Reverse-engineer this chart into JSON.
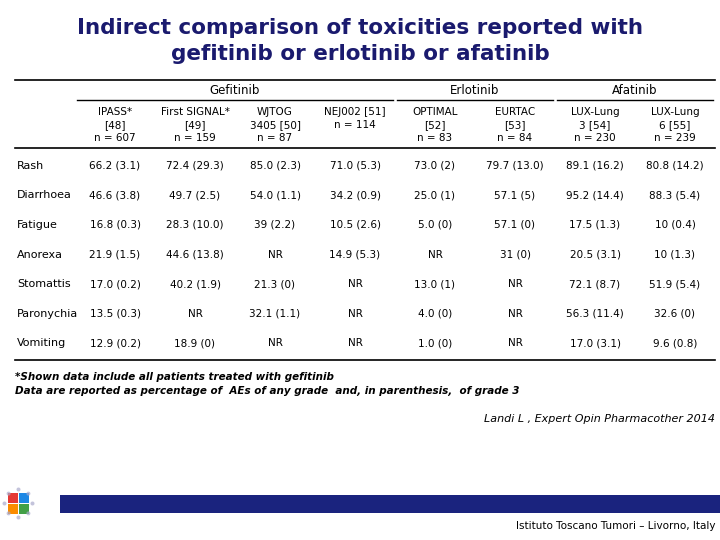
{
  "title_line1": "Indirect comparison of toxicities reported with",
  "title_line2": "gefitinib or erlotinib or afatinib",
  "title_color": "#1a1a6e",
  "background_color": "#ffffff",
  "group_headers": [
    "Gefitinib",
    "Erlotinib",
    "Afatinib"
  ],
  "col_headers_line1": [
    "IPASS*",
    "First SIGNAL*",
    "WJTOG",
    "NEJ002 [51]",
    "OPTIMAL",
    "EURTAC",
    "LUX-Lung",
    "LUX-Lung"
  ],
  "col_headers_line2": [
    "[48]",
    "[49]",
    "3405 [50]",
    "n = 114",
    "[52]",
    "[53]",
    "3 [54]",
    "6 [55]"
  ],
  "col_headers_line3": [
    "n = 607",
    "n = 159",
    "n = 87",
    "",
    "n = 83",
    "n = 84",
    "n = 230",
    "n = 239"
  ],
  "row_labels": [
    "Rash",
    "Diarrhoea",
    "Fatigue",
    "Anorexa",
    "Stomattis",
    "Paronychia",
    "Vomiting"
  ],
  "table_data": [
    [
      "66.2 (3.1)",
      "72.4 (29.3)",
      "85.0 (2.3)",
      "71.0 (5.3)",
      "73.0 (2)",
      "79.7 (13.0)",
      "89.1 (16.2)",
      "80.8 (14.2)"
    ],
    [
      "46.6 (3.8)",
      "49.7 (2.5)",
      "54.0 (1.1)",
      "34.2 (0.9)",
      "25.0 (1)",
      "57.1 (5)",
      "95.2 (14.4)",
      "88.3 (5.4)"
    ],
    [
      "16.8 (0.3)",
      "28.3 (10.0)",
      "39 (2.2)",
      "10.5 (2.6)",
      "5.0 (0)",
      "57.1 (0)",
      "17.5 (1.3)",
      "10 (0.4)"
    ],
    [
      "21.9 (1.5)",
      "44.6 (13.8)",
      "NR",
      "14.9 (5.3)",
      "NR",
      "31 (0)",
      "20.5 (3.1)",
      "10 (1.3)"
    ],
    [
      "17.0 (0.2)",
      "40.2 (1.9)",
      "21.3 (0)",
      "NR",
      "13.0 (1)",
      "NR",
      "72.1 (8.7)",
      "51.9 (5.4)"
    ],
    [
      "13.5 (0.3)",
      "NR",
      "32.1 (1.1)",
      "NR",
      "4.0 (0)",
      "NR",
      "56.3 (11.4)",
      "32.6 (0)"
    ],
    [
      "12.9 (0.2)",
      "18.9 (0)",
      "NR",
      "NR",
      "1.0 (0)",
      "NR",
      "17.0 (3.1)",
      "9.6 (0.8)"
    ]
  ],
  "footnote1": "*Shown data include all patients treated with gefitinib",
  "footnote2": "Data are reported as percentage of  AEs of any grade  and, in parenthesis,  of grade 3",
  "citation": "Landi L , Expert Opin Pharmacother 2014",
  "institution": "Istituto Toscano Tumori – Livorno, Italy",
  "footer_bar_color": "#1a237e",
  "logo_colors": [
    "#e53935",
    "#1e88e5",
    "#fb8c00",
    "#43a047"
  ]
}
